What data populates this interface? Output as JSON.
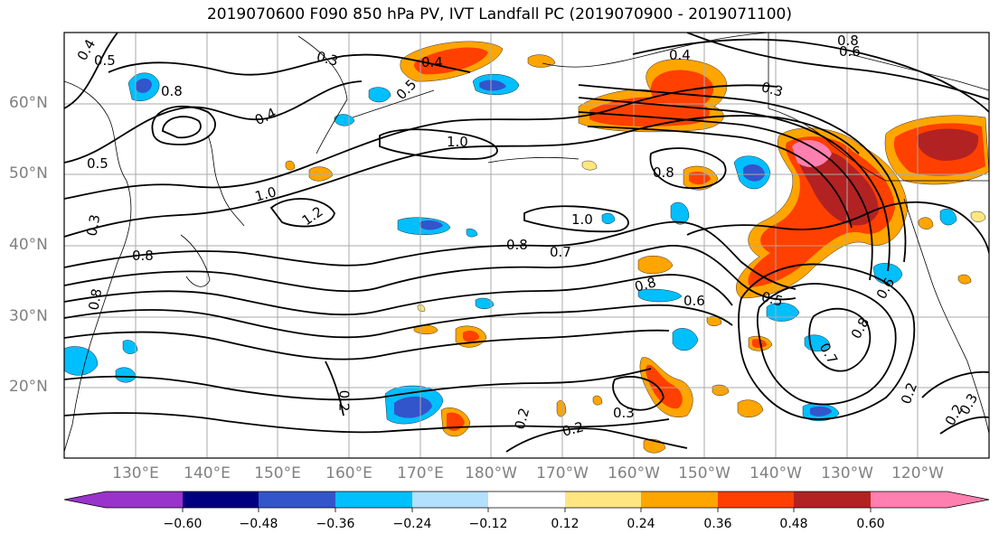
{
  "title": "2019070600 F090 850 hPa PV, IVT Landfall PC (2019070900 - 2019071100)",
  "lat_labels": [
    "60°N",
    "50°N",
    "40°N",
    "30°N",
    "20°N"
  ],
  "lon_labels": [
    "130°E",
    "140°E",
    "150°E",
    "160°E",
    "170°E",
    "180°W",
    "170°W",
    "160°W",
    "150°W",
    "140°W",
    "130°W",
    "120°W"
  ],
  "colorbar": {
    "ticks": [
      "−0.60",
      "−0.48",
      "−0.36",
      "−0.24",
      "−0.12",
      "0.12",
      "0.24",
      "0.36",
      "0.48",
      "0.60"
    ],
    "colors": [
      "#9933cc",
      "#000080",
      "#3355cc",
      "#00bfff",
      "#b3e0ff",
      "#ffffff",
      "#ffe680",
      "#ffa500",
      "#ff4000",
      "#b22222",
      "#ff80b0"
    ]
  },
  "contour_labels": [
    "0.4",
    "0.5",
    "0.3",
    "0.4",
    "0.8",
    "0.6",
    "0.8",
    "0.4",
    "0.3",
    "0.4",
    "0.5",
    "1.0",
    "0.8",
    "1.0",
    "1.2",
    "1.0",
    "0.8",
    "0.7",
    "0.8",
    "0.6",
    "0.5",
    "0.6",
    "0.8",
    "0.7",
    "0.2",
    "0.2",
    "0.2",
    "0.3",
    "0.2",
    "0.2",
    "0.3",
    "0.5",
    "0.8",
    "0.3",
    "0.8"
  ]
}
